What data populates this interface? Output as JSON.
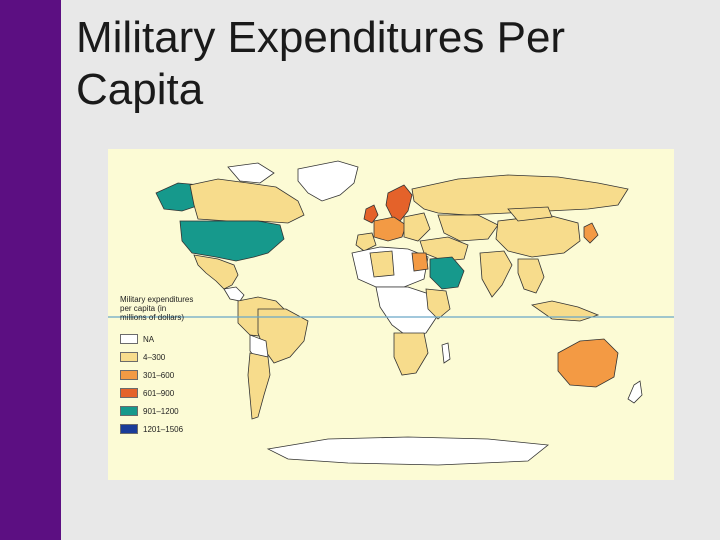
{
  "slide": {
    "title": "Military Expenditures Per Capita",
    "accent_color": "#5c0f82",
    "background_color": "#e8e8e8"
  },
  "map": {
    "background_color": "#fcfbd5",
    "equator_color": "#6aa7c8",
    "legend": {
      "title": "Military expenditures\nper capita (in\nmillions of dollars)",
      "items": [
        {
          "label": "NA",
          "color": "#ffffff"
        },
        {
          "label": "4–300",
          "color": "#f7dc8c"
        },
        {
          "label": "301–600",
          "color": "#f39a44"
        },
        {
          "label": "601–900",
          "color": "#e4622a"
        },
        {
          "label": "901–1200",
          "color": "#16998c"
        },
        {
          "label": "1201–1506",
          "color": "#1a3c99"
        }
      ]
    }
  }
}
